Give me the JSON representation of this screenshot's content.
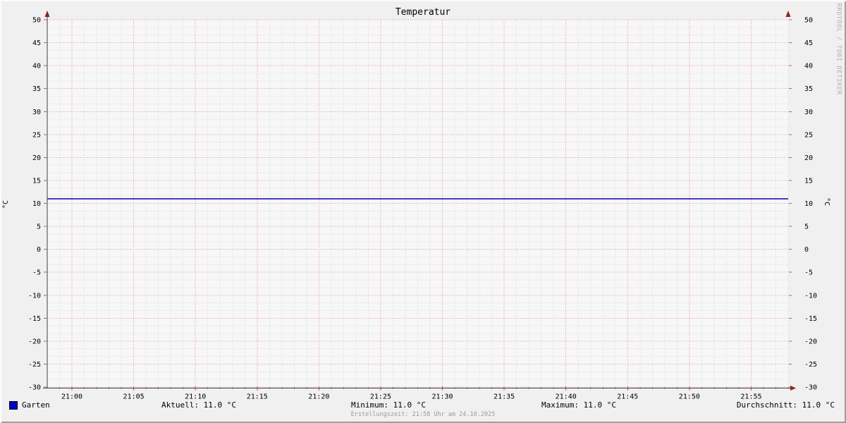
{
  "title": "Temperatur",
  "watermark": "RRDTOOL / TOBI OETIKER",
  "axis_label_left": "°C",
  "axis_label_right": "°C",
  "footer_note": "Erstellungszeit: 21:58 Uhr am 24.10.2025",
  "legend": {
    "series_label": "Garten",
    "aktuell": "Aktuell: 11.0 °C",
    "minimum": "Minimum: 11.0 °C",
    "maximum": "Maximum: 11.0 °C",
    "durchschnitt": "Durchschnitt: 11.0 °C"
  },
  "chart_data": {
    "type": "line",
    "title": "Temperatur",
    "xlabel": "",
    "ylabel": "°C",
    "ylim": [
      -30,
      50
    ],
    "y_tick_step": 5,
    "y_ticks": [
      50,
      45,
      40,
      35,
      30,
      25,
      20,
      15,
      10,
      5,
      0,
      -5,
      -10,
      -15,
      -20,
      -25,
      -30
    ],
    "x_start_time": "20:58",
    "x_end_time": "21:58",
    "x_ticks": [
      "21:00",
      "21:05",
      "21:10",
      "21:15",
      "21:20",
      "21:25",
      "21:30",
      "21:35",
      "21:40",
      "21:45",
      "21:50",
      "21:55"
    ],
    "x_minor_step_minutes": 1,
    "x_major_step_minutes": 5,
    "grid": {
      "on": true,
      "major_color": "#EE9C9C",
      "minor_color": "#D8D8D8"
    },
    "legend_position": "bottom",
    "series": [
      {
        "name": "Garten",
        "color": "#0000C8",
        "style": "line",
        "constant_value": 11.0
      }
    ],
    "stats": {
      "aktuell": 11.0,
      "minimum": 11.0,
      "maximum": 11.0,
      "durchschnitt": 11.0,
      "unit": "°C"
    }
  },
  "colors": {
    "background": "#F0F0F0",
    "canvas": "#F7F7F7",
    "axis": "#404040",
    "arrow": "#8B2424",
    "tick_major": "#CC5555",
    "tick_minor": "#999999",
    "series_line": "#0000C8",
    "muted_text": "#9B9B9B"
  }
}
